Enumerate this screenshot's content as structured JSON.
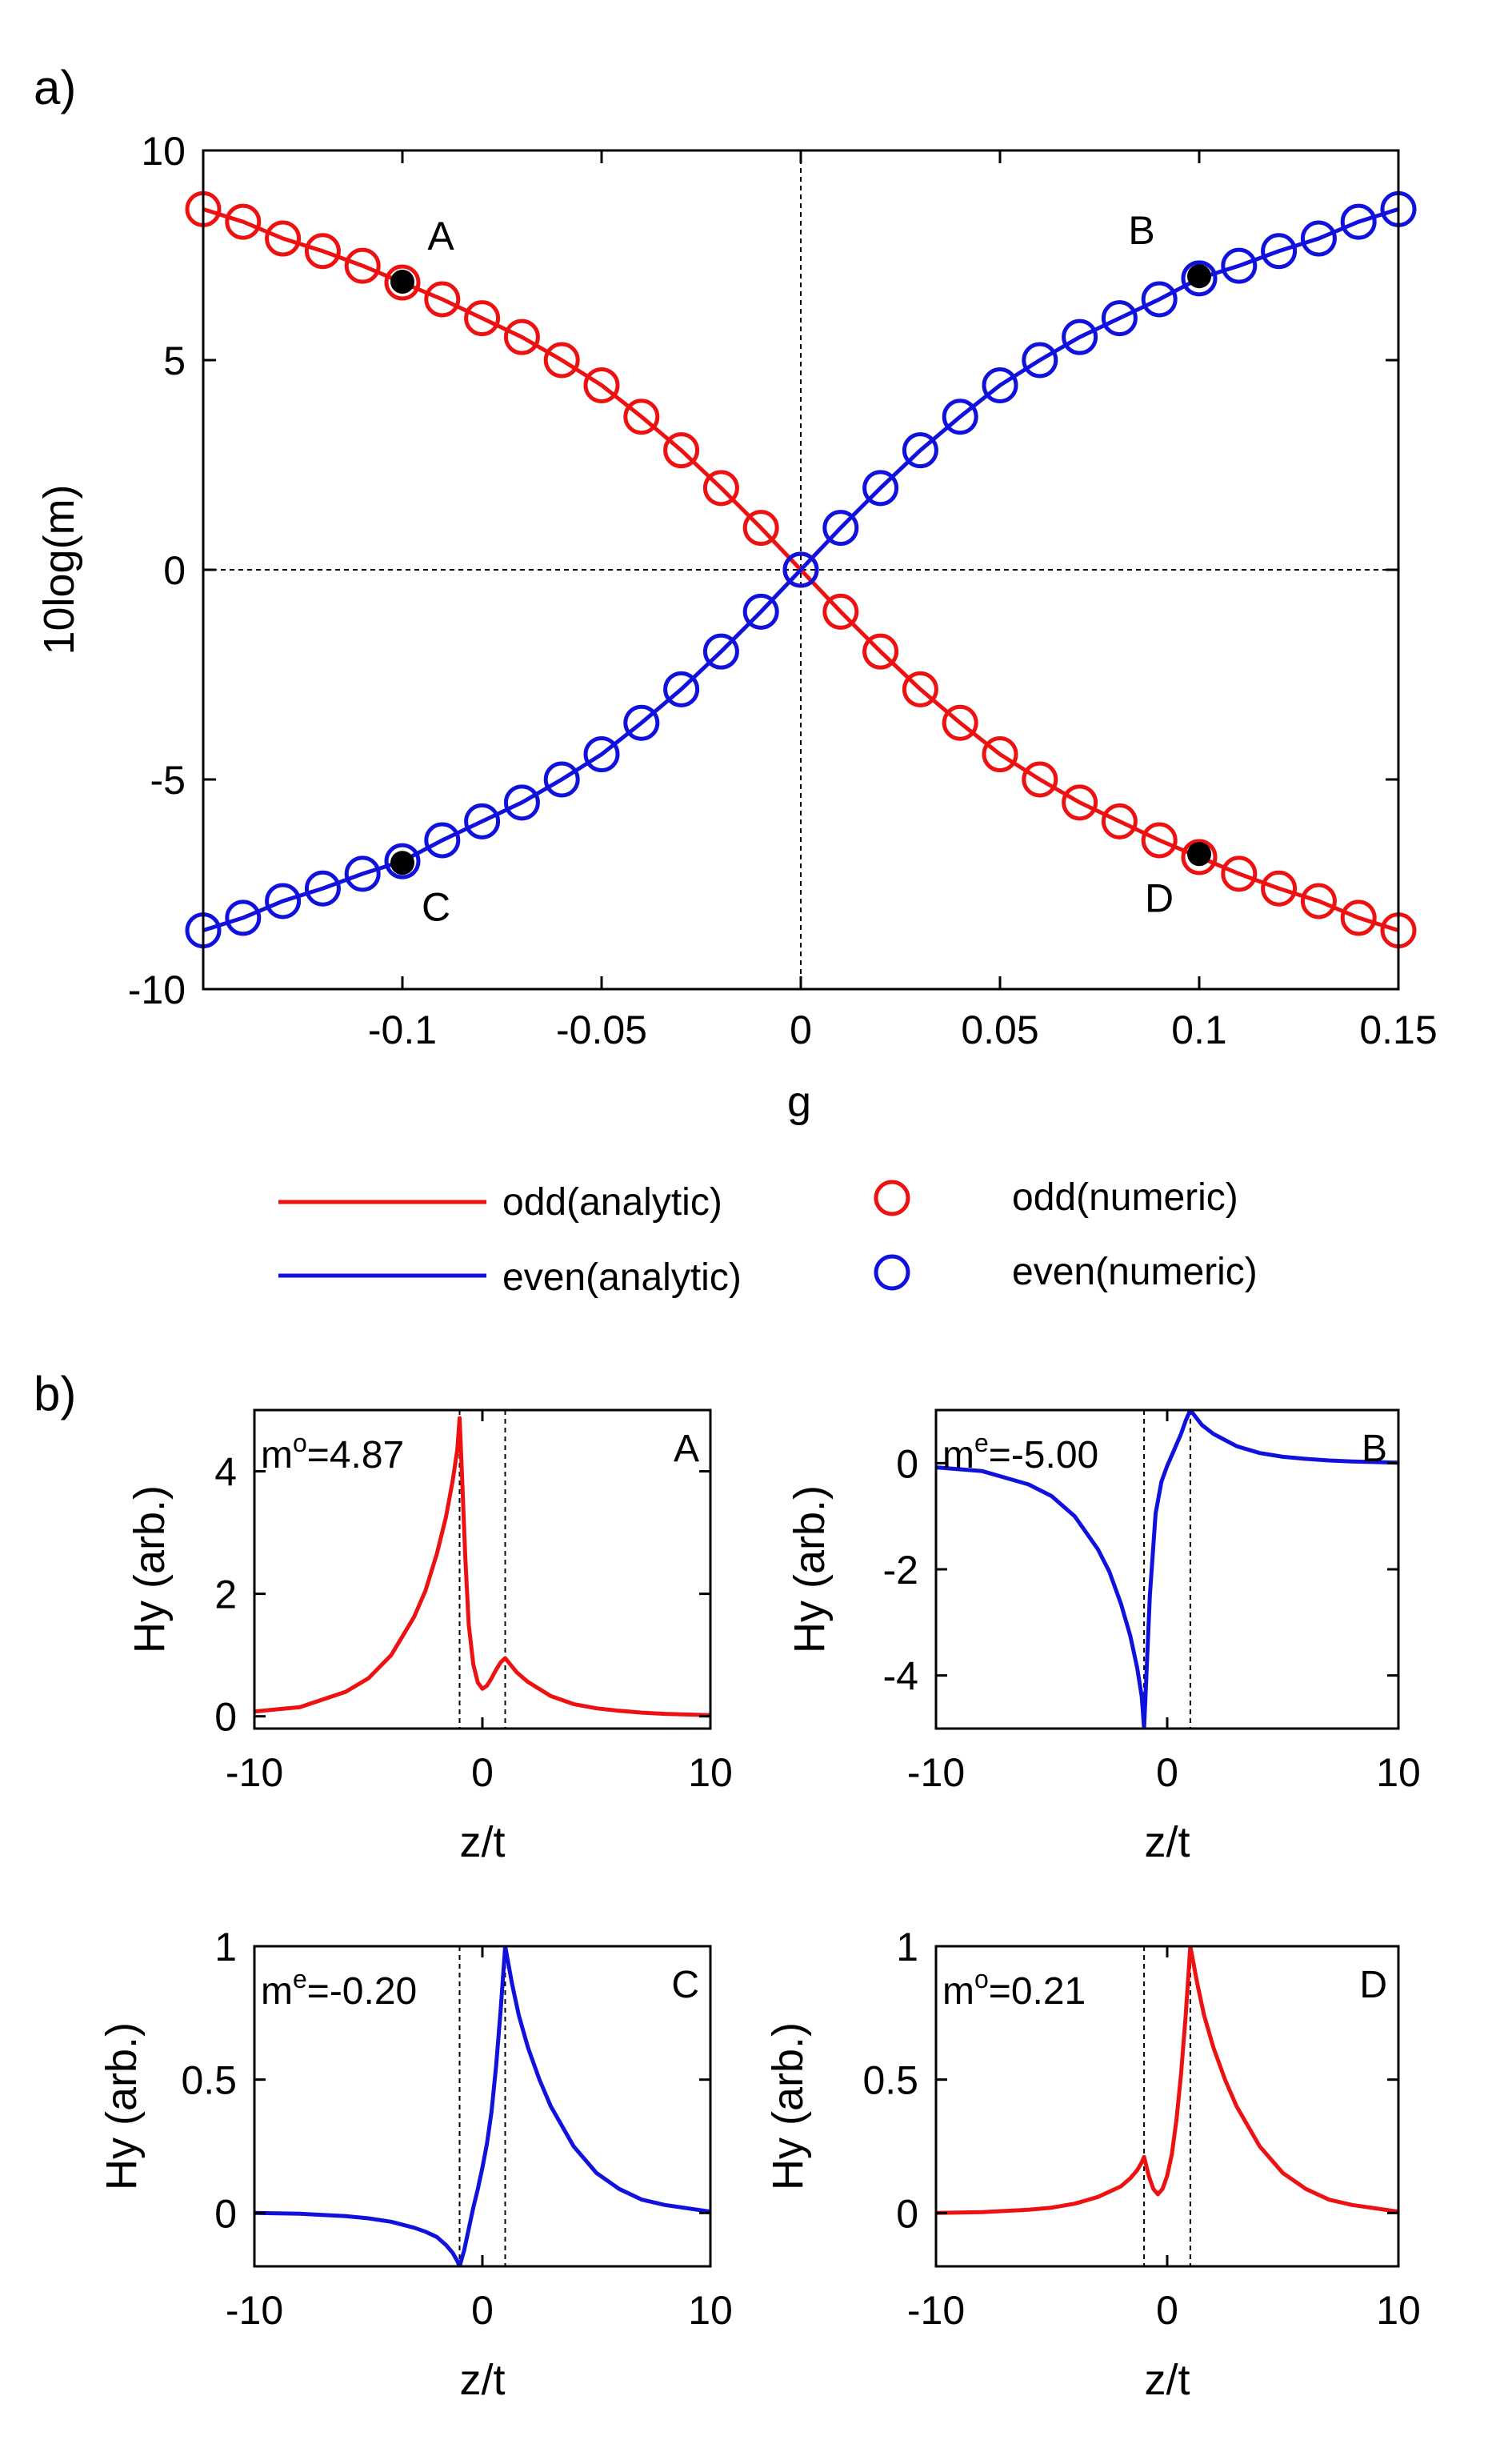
{
  "figure": {
    "panel_a_label": "a)",
    "panel_b_label": "b)",
    "legend": {
      "odd_analytic": "odd(analytic)",
      "even_analytic": "even(analytic)",
      "odd_numeric": "odd(numeric)",
      "even_numeric": "even(numeric)"
    }
  },
  "colors": {
    "odd": "#ee1111",
    "even": "#1111dd",
    "marker": "#000000",
    "axis": "#000000"
  },
  "chart_data": [
    {
      "id": "a",
      "type": "line",
      "title": "",
      "xlabel": "g",
      "ylabel": "10log(m)",
      "xlim": [
        -0.15,
        0.15
      ],
      "ylim": [
        -10,
        10
      ],
      "xticks": [
        -0.1,
        -0.05,
        0,
        0.05,
        0.1,
        0.15
      ],
      "xtick_labels": [
        "-0.1",
        "-0.05",
        "0",
        "0.05",
        "0.1",
        "0.15"
      ],
      "yticks": [
        -10,
        -5,
        0,
        5,
        10
      ],
      "ytick_labels": [
        "-10",
        "-5",
        "0",
        "5",
        "10"
      ],
      "reference_lines": {
        "x": 0,
        "y": 0,
        "style": "dashed"
      },
      "x": [
        -0.15,
        -0.14,
        -0.13,
        -0.12,
        -0.11,
        -0.1,
        -0.09,
        -0.08,
        -0.07,
        -0.06,
        -0.05,
        -0.04,
        -0.03,
        -0.02,
        -0.01,
        0,
        0.01,
        0.02,
        0.03,
        0.04,
        0.05,
        0.06,
        0.07,
        0.08,
        0.09,
        0.1,
        0.11,
        0.12,
        0.13,
        0.14,
        0.15
      ],
      "series": [
        {
          "name": "odd(analytic)",
          "kind": "line",
          "color_key": "odd",
          "values": [
            8.6,
            8.3,
            7.9,
            7.6,
            7.25,
            6.85,
            6.45,
            6.0,
            5.55,
            5.0,
            4.4,
            3.65,
            2.85,
            1.95,
            1.0,
            0,
            -1.0,
            -1.95,
            -2.85,
            -3.65,
            -4.4,
            -5.0,
            -5.55,
            -6.0,
            -6.45,
            -6.85,
            -7.25,
            -7.6,
            -7.9,
            -8.3,
            -8.6
          ]
        },
        {
          "name": "odd(numeric)",
          "kind": "markers",
          "color_key": "odd",
          "values": [
            8.6,
            8.3,
            7.9,
            7.6,
            7.25,
            6.85,
            6.45,
            6.0,
            5.55,
            5.0,
            4.4,
            3.65,
            2.85,
            1.95,
            1.0,
            0,
            -1.0,
            -1.95,
            -2.85,
            -3.65,
            -4.4,
            -5.0,
            -5.55,
            -6.0,
            -6.45,
            -6.85,
            -7.25,
            -7.6,
            -7.9,
            -8.3,
            -8.6
          ]
        },
        {
          "name": "even(analytic)",
          "kind": "line",
          "color_key": "even",
          "values": [
            -8.6,
            -8.3,
            -7.9,
            -7.6,
            -7.25,
            -6.95,
            -6.45,
            -6.0,
            -5.55,
            -5.0,
            -4.4,
            -3.65,
            -2.85,
            -1.95,
            -1.0,
            0,
            1.0,
            1.95,
            2.85,
            3.65,
            4.4,
            5.0,
            5.55,
            6.0,
            6.45,
            6.95,
            7.25,
            7.6,
            7.9,
            8.3,
            8.6
          ]
        },
        {
          "name": "even(numeric)",
          "kind": "markers",
          "color_key": "even",
          "values": [
            -8.6,
            -8.3,
            -7.9,
            -7.6,
            -7.25,
            -6.95,
            -6.45,
            -6.0,
            -5.55,
            -5.0,
            -4.4,
            -3.65,
            -2.85,
            -1.95,
            -1.0,
            0,
            1.0,
            1.95,
            2.85,
            3.65,
            4.4,
            5.0,
            5.55,
            6.0,
            6.45,
            6.95,
            7.25,
            7.6,
            7.9,
            8.3,
            8.6
          ]
        }
      ],
      "highlight_points": [
        {
          "label": "A",
          "x": -0.1,
          "y": 6.87
        },
        {
          "label": "B",
          "x": 0.1,
          "y": 7.0
        },
        {
          "label": "C",
          "x": -0.1,
          "y": -6.99
        },
        {
          "label": "D",
          "x": 0.1,
          "y": -6.78
        }
      ]
    },
    {
      "id": "A",
      "type": "line",
      "corner_label": "A",
      "annotation": {
        "m": "m",
        "sup": "o",
        "rest": "=4.87"
      },
      "color_key": "odd",
      "xlabel": "z/t",
      "ylabel": "Hy (arb.)",
      "xlim": [
        -10,
        10
      ],
      "ylim": [
        -0.2,
        5.0
      ],
      "xticks": [
        -10,
        0,
        10
      ],
      "xtick_labels": [
        "-10",
        "0",
        "10"
      ],
      "yticks": [
        0,
        2,
        4
      ],
      "ytick_labels": [
        "0",
        "2",
        "4"
      ],
      "vlines": [
        -1,
        1
      ],
      "x": [
        -10,
        -8,
        -6,
        -5,
        -4,
        -3,
        -2.5,
        -2,
        -1.6,
        -1.3,
        -1.1,
        -1,
        -0.9,
        -0.75,
        -0.6,
        -0.4,
        -0.2,
        0,
        0.2,
        0.4,
        0.6,
        0.8,
        1,
        1.5,
        2,
        3,
        4,
        5,
        6,
        7,
        8,
        10
      ],
      "y": [
        0.08,
        0.15,
        0.4,
        0.62,
        1.0,
        1.62,
        2.05,
        2.65,
        3.25,
        3.85,
        4.35,
        4.87,
        4.0,
        2.6,
        1.5,
        0.85,
        0.55,
        0.45,
        0.5,
        0.62,
        0.76,
        0.88,
        0.95,
        0.72,
        0.56,
        0.33,
        0.2,
        0.13,
        0.09,
        0.06,
        0.04,
        0.02
      ]
    },
    {
      "id": "B",
      "type": "line",
      "corner_label": "B",
      "annotation": {
        "m": "m",
        "sup": "e",
        "rest": "=-5.00"
      },
      "color_key": "even",
      "xlabel": "z/t",
      "ylabel": "Hy (arb.)",
      "xlim": [
        -10,
        10
      ],
      "ylim": [
        -5.0,
        1.0
      ],
      "xticks": [
        -10,
        0,
        10
      ],
      "xtick_labels": [
        "-10",
        "0",
        "10"
      ],
      "yticks": [
        -4,
        -2,
        0
      ],
      "ytick_labels": [
        "-4",
        "-2",
        "0"
      ],
      "vlines": [
        -1,
        1
      ],
      "x": [
        -10,
        -8,
        -6,
        -5,
        -4,
        -3,
        -2.5,
        -2,
        -1.6,
        -1.3,
        -1.1,
        -1,
        -0.9,
        -0.75,
        -0.5,
        -0.25,
        0,
        0.3,
        0.6,
        0.8,
        1,
        1.5,
        2,
        3,
        4,
        5,
        6,
        7,
        8,
        10
      ],
      "y": [
        -0.08,
        -0.15,
        -0.4,
        -0.62,
        -1.0,
        -1.62,
        -2.05,
        -2.65,
        -3.25,
        -3.85,
        -4.4,
        -5.0,
        -4.0,
        -2.5,
        -0.95,
        -0.35,
        -0.05,
        0.25,
        0.55,
        0.8,
        1.0,
        0.72,
        0.55,
        0.32,
        0.19,
        0.12,
        0.08,
        0.05,
        0.03,
        0.01
      ]
    },
    {
      "id": "C",
      "type": "line",
      "corner_label": "C",
      "annotation": {
        "m": "m",
        "sup": "e",
        "rest": "=-0.20"
      },
      "color_key": "even",
      "xlabel": "z/t",
      "ylabel": "Hy (arb.)",
      "xlim": [
        -10,
        10
      ],
      "ylim": [
        -0.2,
        1.0
      ],
      "xticks": [
        -10,
        0,
        10
      ],
      "xtick_labels": [
        "-10",
        "0",
        "10"
      ],
      "yticks": [
        0,
        0.5,
        1
      ],
      "ytick_labels": [
        "0",
        "0.5",
        "1"
      ],
      "vlines": [
        -1,
        1
      ],
      "x": [
        -10,
        -8,
        -6,
        -5,
        -4,
        -3,
        -2.5,
        -2,
        -1.6,
        -1.3,
        -1.1,
        -1,
        -0.8,
        -0.6,
        -0.4,
        -0.2,
        0,
        0.2,
        0.4,
        0.6,
        0.8,
        1,
        1.3,
        1.6,
        2,
        2.5,
        3,
        4,
        5,
        6,
        7,
        8,
        10
      ],
      "y": [
        0.0,
        -0.003,
        -0.012,
        -0.02,
        -0.033,
        -0.055,
        -0.07,
        -0.09,
        -0.12,
        -0.15,
        -0.18,
        -0.2,
        -0.14,
        -0.06,
        0.02,
        0.09,
        0.17,
        0.26,
        0.38,
        0.55,
        0.76,
        1.0,
        0.86,
        0.74,
        0.62,
        0.5,
        0.4,
        0.25,
        0.15,
        0.09,
        0.05,
        0.03,
        0.005
      ]
    },
    {
      "id": "D",
      "type": "line",
      "corner_label": "D",
      "annotation": {
        "m": "m",
        "sup": "o",
        "rest": "=0.21"
      },
      "color_key": "odd",
      "xlabel": "z/t",
      "ylabel": "Hy (arb.)",
      "xlim": [
        -10,
        10
      ],
      "ylim": [
        -0.2,
        1.0
      ],
      "xticks": [
        -10,
        0,
        10
      ],
      "xtick_labels": [
        "-10",
        "0",
        "10"
      ],
      "yticks": [
        0,
        0.5,
        1
      ],
      "ytick_labels": [
        "0",
        "0.5",
        "1"
      ],
      "vlines": [
        -1,
        1
      ],
      "x": [
        -10,
        -8,
        -6,
        -5,
        -4,
        -3,
        -2.5,
        -2,
        -1.6,
        -1.3,
        -1.1,
        -1,
        -0.8,
        -0.6,
        -0.4,
        -0.2,
        0,
        0.2,
        0.4,
        0.6,
        0.8,
        1,
        1.3,
        1.6,
        2,
        2.5,
        3,
        4,
        5,
        6,
        7,
        8,
        10
      ],
      "y": [
        0.0,
        0.003,
        0.012,
        0.02,
        0.035,
        0.06,
        0.08,
        0.1,
        0.13,
        0.16,
        0.19,
        0.21,
        0.14,
        0.09,
        0.07,
        0.09,
        0.14,
        0.22,
        0.35,
        0.52,
        0.74,
        1.0,
        0.86,
        0.74,
        0.62,
        0.5,
        0.4,
        0.25,
        0.15,
        0.09,
        0.05,
        0.03,
        0.005
      ]
    }
  ]
}
